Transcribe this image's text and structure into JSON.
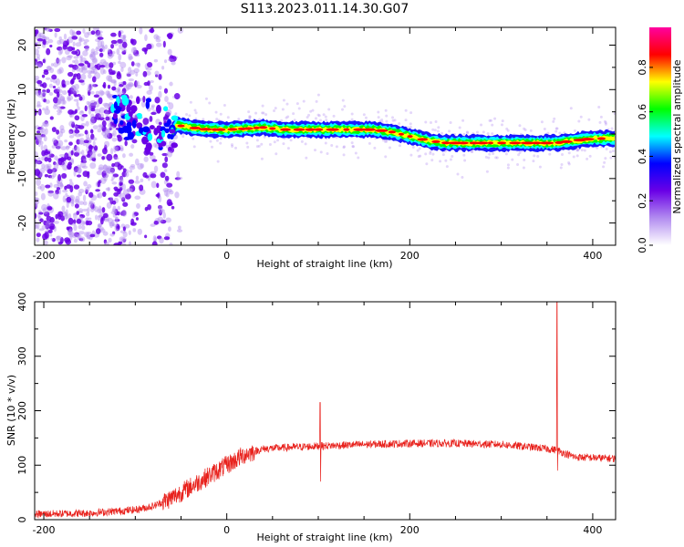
{
  "title": "S113.2023.011.14.30.G07",
  "chart_data": [
    {
      "type": "heatmap",
      "name": "spectrogram",
      "xlabel": "Height of straight line (km)",
      "ylabel": "Frequency (Hz)",
      "xlim": [
        -210,
        425
      ],
      "ylim": [
        -25,
        24
      ],
      "xticks": [
        -200,
        0,
        200,
        400
      ],
      "yticks": [
        -20,
        -10,
        0,
        10,
        20
      ],
      "ridge": {
        "x": [
          -125,
          -110,
          -95,
          -80,
          -65,
          -55,
          -40,
          -20,
          0,
          20,
          40,
          60,
          80,
          100,
          120,
          140,
          160,
          180,
          200,
          220,
          240,
          260,
          280,
          300,
          320,
          340,
          360,
          380,
          400,
          425
        ],
        "frequency_hz": [
          5,
          4,
          2,
          0,
          -1,
          2,
          1.5,
          1,
          1,
          1.2,
          1.5,
          1,
          1,
          1,
          1,
          1,
          1,
          0.5,
          -0.5,
          -1.5,
          -2,
          -2,
          -2,
          -2,
          -2,
          -2,
          -2,
          -1.5,
          -1,
          -1
        ]
      },
      "colorbar": {
        "label": "Normalized spectral amplitude",
        "ticks": [
          "0.0",
          "0.2",
          "0.4",
          "0.6",
          "0.8"
        ],
        "range": [
          0,
          0.98
        ],
        "stops": [
          "#ffffff",
          "#b28cf0",
          "#6a00e6",
          "#0000ff",
          "#00ffff",
          "#00ff00",
          "#ffff00",
          "#ff0000",
          "#ff00a0"
        ]
      }
    },
    {
      "type": "line",
      "name": "snr",
      "xlabel": "Height of straight line (km)",
      "ylabel": "SNR (10 * v/v)",
      "xlim": [
        -210,
        425
      ],
      "ylim": [
        0,
        400
      ],
      "xticks": [
        -200,
        0,
        200,
        400
      ],
      "yticks": [
        0,
        100,
        200,
        300,
        400
      ],
      "color": "#e8211c",
      "trend": {
        "x": [
          -210,
          -150,
          -100,
          -80,
          -60,
          -40,
          -20,
          0,
          20,
          40,
          60,
          100,
          150,
          200,
          250,
          300,
          340,
          360,
          380,
          425
        ],
        "snr": [
          10,
          12,
          18,
          25,
          40,
          60,
          80,
          100,
          120,
          130,
          132,
          135,
          138,
          140,
          140,
          138,
          132,
          128,
          115,
          112
        ]
      },
      "spikes": [
        {
          "x": 102,
          "high": 215,
          "low": 70
        },
        {
          "x": 361,
          "high": 400,
          "low": 90
        }
      ]
    }
  ]
}
